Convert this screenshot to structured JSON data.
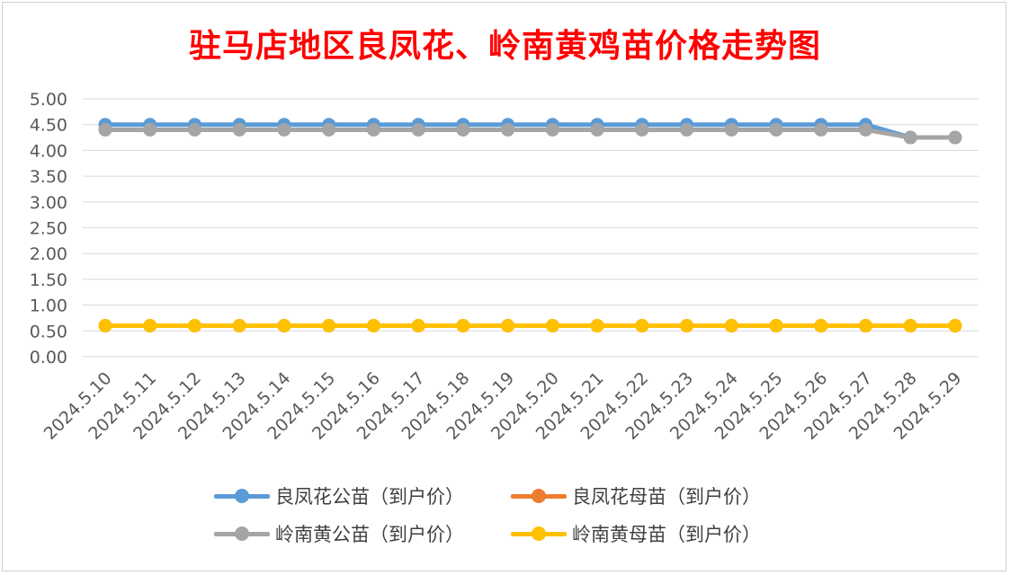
{
  "chart_data": {
    "type": "line",
    "title": "驻马店地区良凤花、岭南黄鸡苗价格走势图",
    "xlabel": "",
    "ylabel": "",
    "ylim": [
      0,
      5
    ],
    "yticks": [
      "0.00",
      "0.50",
      "1.00",
      "1.50",
      "2.00",
      "2.50",
      "3.00",
      "3.50",
      "4.00",
      "4.50",
      "5.00"
    ],
    "grid": true,
    "legend_position": "bottom",
    "categories": [
      "2024.5.10",
      "2024.5.11",
      "2024.5.12",
      "2024.5.13",
      "2024.5.14",
      "2024.5.15",
      "2024.5.16",
      "2024.5.17",
      "2024.5.18",
      "2024.5.19",
      "2024.5.20",
      "2024.5.21",
      "2024.5.22",
      "2024.5.23",
      "2024.5.24",
      "2024.5.25",
      "2024.5.26",
      "2024.5.27",
      "2024.5.28",
      "2024.5.29"
    ],
    "series": [
      {
        "name": "良凤花公苗（到户价）",
        "color": "#5b9bd5",
        "values": [
          4.5,
          4.5,
          4.5,
          4.5,
          4.5,
          4.5,
          4.5,
          4.5,
          4.5,
          4.5,
          4.5,
          4.5,
          4.5,
          4.5,
          4.5,
          4.5,
          4.5,
          4.5,
          4.25,
          4.25
        ]
      },
      {
        "name": "良凤花母苗（到户价）",
        "color": "#ed7d31",
        "values": [
          0.6,
          0.6,
          0.6,
          0.6,
          0.6,
          0.6,
          0.6,
          0.6,
          0.6,
          0.6,
          0.6,
          0.6,
          0.6,
          0.6,
          0.6,
          0.6,
          0.6,
          0.6,
          0.6,
          0.6
        ]
      },
      {
        "name": "岭南黄公苗（到户价）",
        "color": "#a5a5a5",
        "values": [
          4.4,
          4.4,
          4.4,
          4.4,
          4.4,
          4.4,
          4.4,
          4.4,
          4.4,
          4.4,
          4.4,
          4.4,
          4.4,
          4.4,
          4.4,
          4.4,
          4.4,
          4.4,
          4.25,
          4.25
        ]
      },
      {
        "name": "岭南黄母苗（到户价）",
        "color": "#ffc000",
        "values": [
          0.6,
          0.6,
          0.6,
          0.6,
          0.6,
          0.6,
          0.6,
          0.6,
          0.6,
          0.6,
          0.6,
          0.6,
          0.6,
          0.6,
          0.6,
          0.6,
          0.6,
          0.6,
          0.6,
          0.6
        ]
      }
    ]
  }
}
